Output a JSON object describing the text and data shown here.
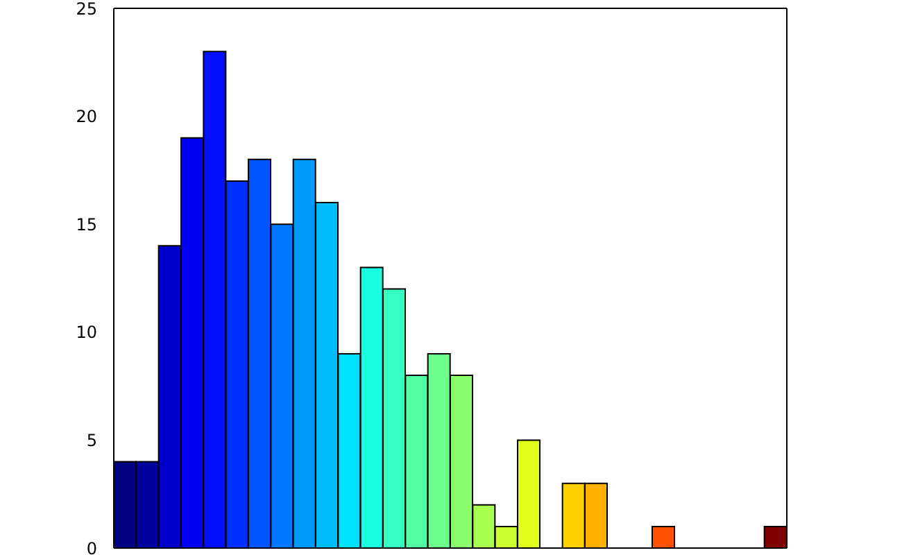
{
  "chart_data": {
    "type": "bar",
    "categories": [
      null,
      null,
      null,
      null,
      null,
      null,
      null,
      null,
      null,
      null,
      null,
      null,
      null,
      null,
      null,
      null,
      null,
      null,
      null,
      null,
      null,
      null,
      null,
      null,
      null,
      null,
      null,
      null,
      null,
      null
    ],
    "values": [
      4,
      4,
      14,
      19,
      23,
      17,
      18,
      15,
      18,
      16,
      9,
      13,
      12,
      8,
      9,
      8,
      2,
      1,
      5,
      0,
      3,
      3,
      0,
      0,
      1,
      0,
      0,
      0,
      0,
      1
    ],
    "colors": [
      "#000080",
      "#00009f",
      "#0000cd",
      "#0000f1",
      "#0010ff",
      "#0030ff",
      "#0054ff",
      "#0077ff",
      "#009aff",
      "#00bdff",
      "#00e0ff",
      "#1affe0",
      "#36ffc1",
      "#52ffa5",
      "#6dff89",
      "#89ff6d",
      "#a8ff4f",
      "#ccff2f",
      "#e0ff1a",
      "#ffe800",
      "#ffd000",
      "#ffb000",
      "#ff8c00",
      "#ff6800",
      "#ff5000",
      "#ff2c00",
      "#ee0000",
      "#c40000",
      "#9b0000",
      "#800000"
    ],
    "ylim": [
      0,
      25
    ],
    "yticks": [
      0,
      5,
      10,
      15,
      20,
      25
    ],
    "tick_labels": "y"
  }
}
